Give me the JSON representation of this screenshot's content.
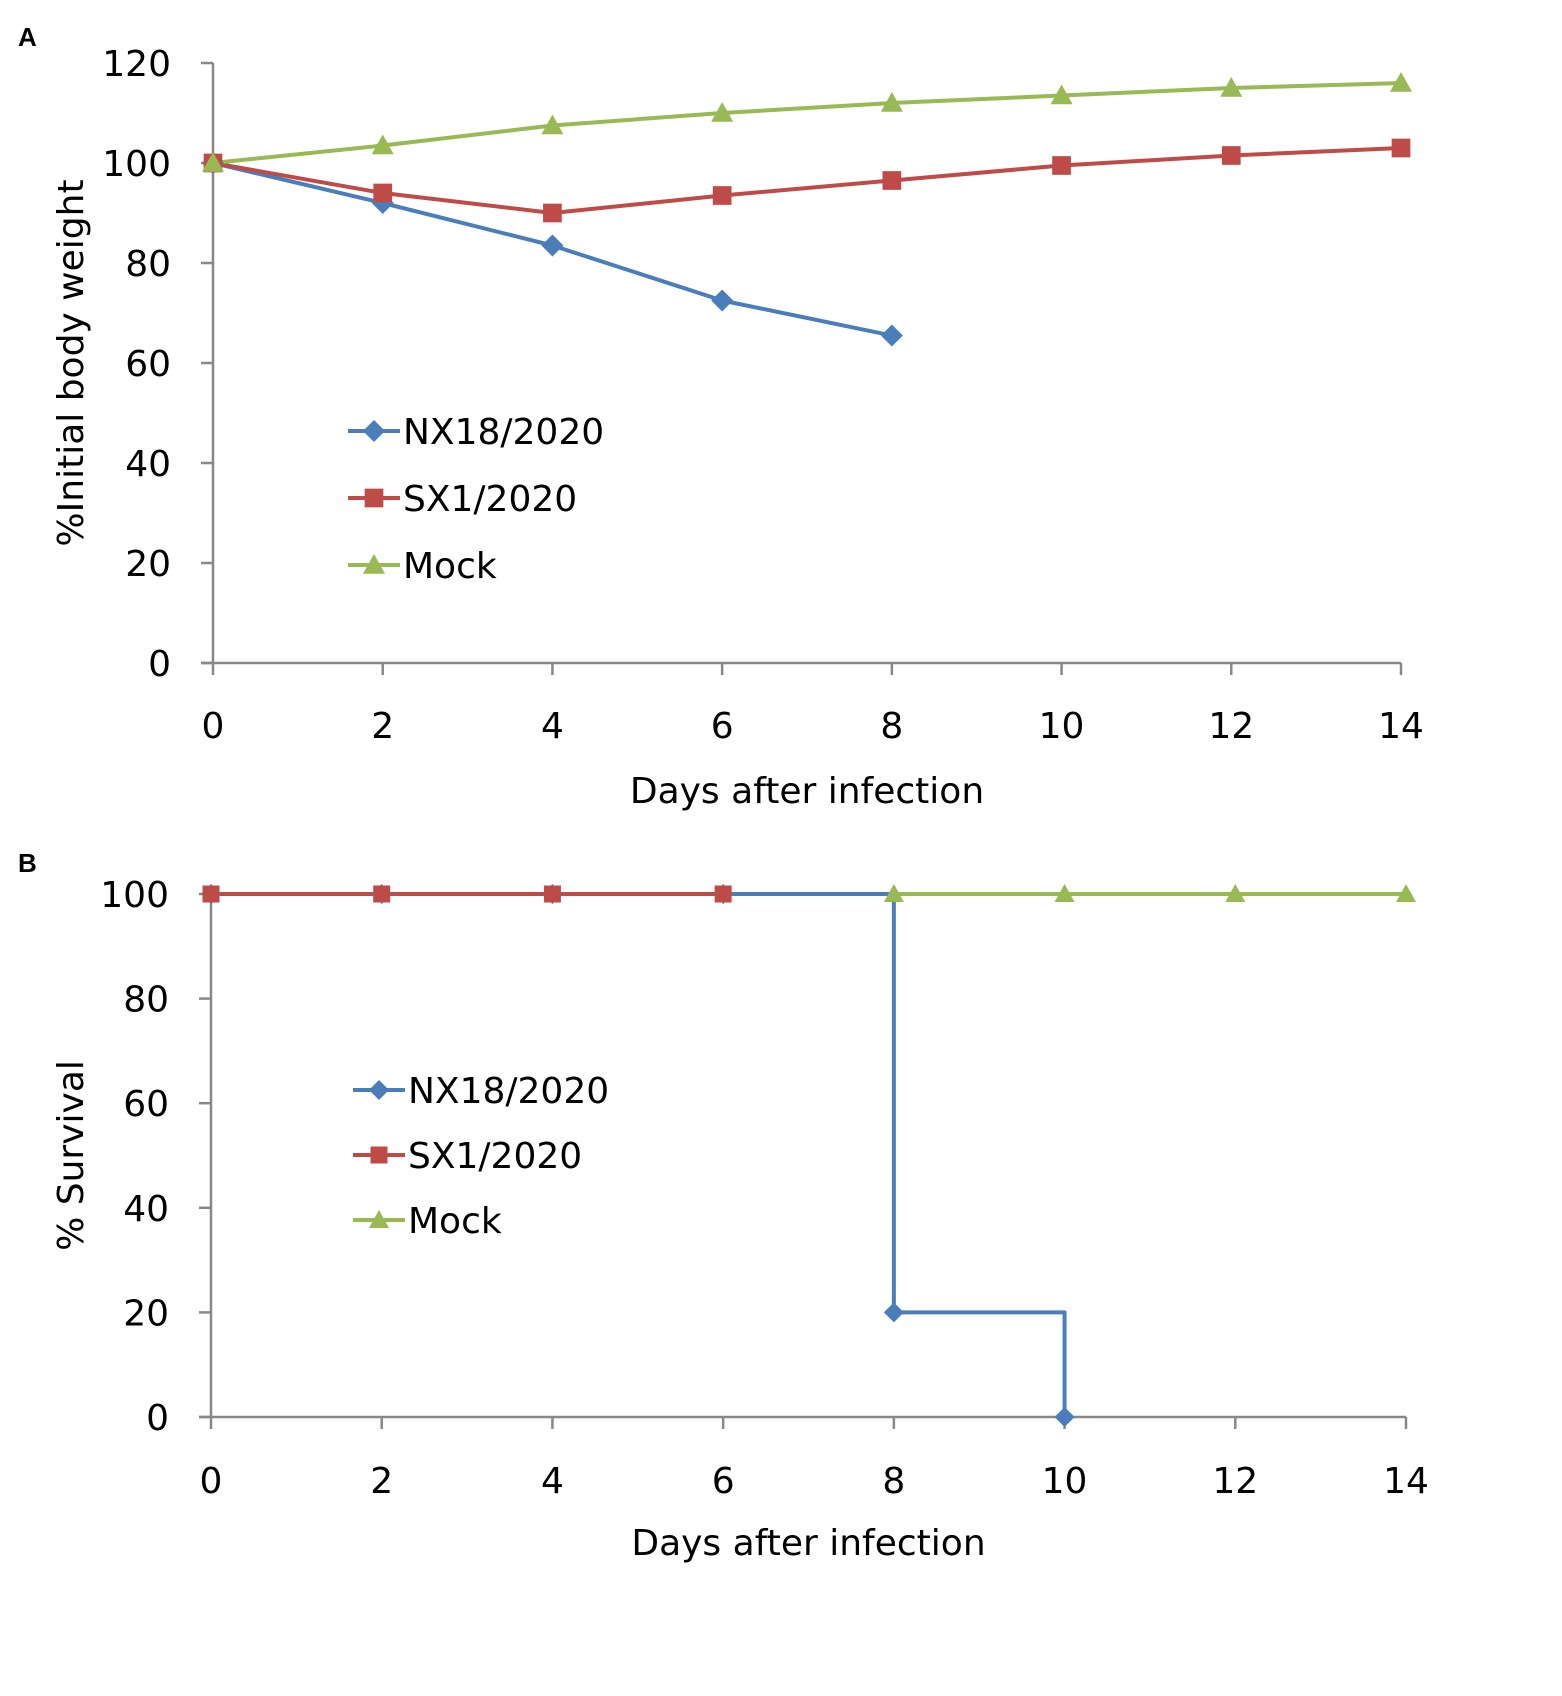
{
  "panels": {
    "a": {
      "letter": "A"
    },
    "b": {
      "letter": "B"
    }
  },
  "chart_data": [
    {
      "type": "line",
      "panel": "A",
      "title": "",
      "xlabel": "Days after infection",
      "ylabel": "%Initial body weight",
      "xlim": [
        0,
        14
      ],
      "ylim": [
        0,
        120
      ],
      "xticks": [
        0,
        2,
        4,
        6,
        8,
        10,
        12,
        14
      ],
      "yticks": [
        0,
        20,
        40,
        60,
        80,
        100,
        120
      ],
      "grid": false,
      "legend_position": "center-left",
      "series": [
        {
          "name": "NX18/2020",
          "color": "#4a7ebb",
          "marker": "diamond",
          "step": false,
          "x": [
            0,
            2,
            4,
            6,
            8
          ],
          "y": [
            100,
            92,
            83.5,
            72.5,
            65.5
          ]
        },
        {
          "name": "SX1/2020",
          "color": "#be4b48",
          "marker": "square",
          "step": false,
          "x": [
            0,
            2,
            4,
            6,
            8,
            10,
            12,
            14
          ],
          "y": [
            100,
            94,
            90,
            93.5,
            96.5,
            99.5,
            101.5,
            103
          ]
        },
        {
          "name": "Mock",
          "color": "#98b954",
          "marker": "triangle",
          "step": false,
          "x": [
            0,
            2,
            4,
            6,
            8,
            10,
            12,
            14
          ],
          "y": [
            100,
            103.5,
            107.5,
            110,
            112,
            113.5,
            115,
            116
          ]
        }
      ]
    },
    {
      "type": "line",
      "panel": "B",
      "title": "",
      "xlabel": "Days after infection",
      "ylabel": "% Survival",
      "xlim": [
        0,
        14
      ],
      "ylim": [
        0,
        100
      ],
      "xticks": [
        0,
        2,
        4,
        6,
        8,
        10,
        12,
        14
      ],
      "yticks": [
        0,
        20,
        40,
        60,
        80,
        100
      ],
      "grid": false,
      "legend_position": "center-left",
      "series": [
        {
          "name": "NX18/2020",
          "color": "#4a7ebb",
          "marker": "diamond",
          "step": true,
          "x": [
            0,
            2,
            4,
            6,
            8,
            10
          ],
          "y": [
            100,
            100,
            100,
            100,
            20,
            0
          ]
        },
        {
          "name": "SX1/2020",
          "color": "#be4b48",
          "marker": "square",
          "step": false,
          "x": [
            0,
            2,
            4,
            6
          ],
          "y": [
            100,
            100,
            100,
            100
          ]
        },
        {
          "name": "Mock",
          "color": "#98b954",
          "marker": "triangle",
          "step": false,
          "x": [
            8,
            10,
            12,
            14
          ],
          "y": [
            100,
            100,
            100,
            100
          ]
        }
      ]
    }
  ]
}
